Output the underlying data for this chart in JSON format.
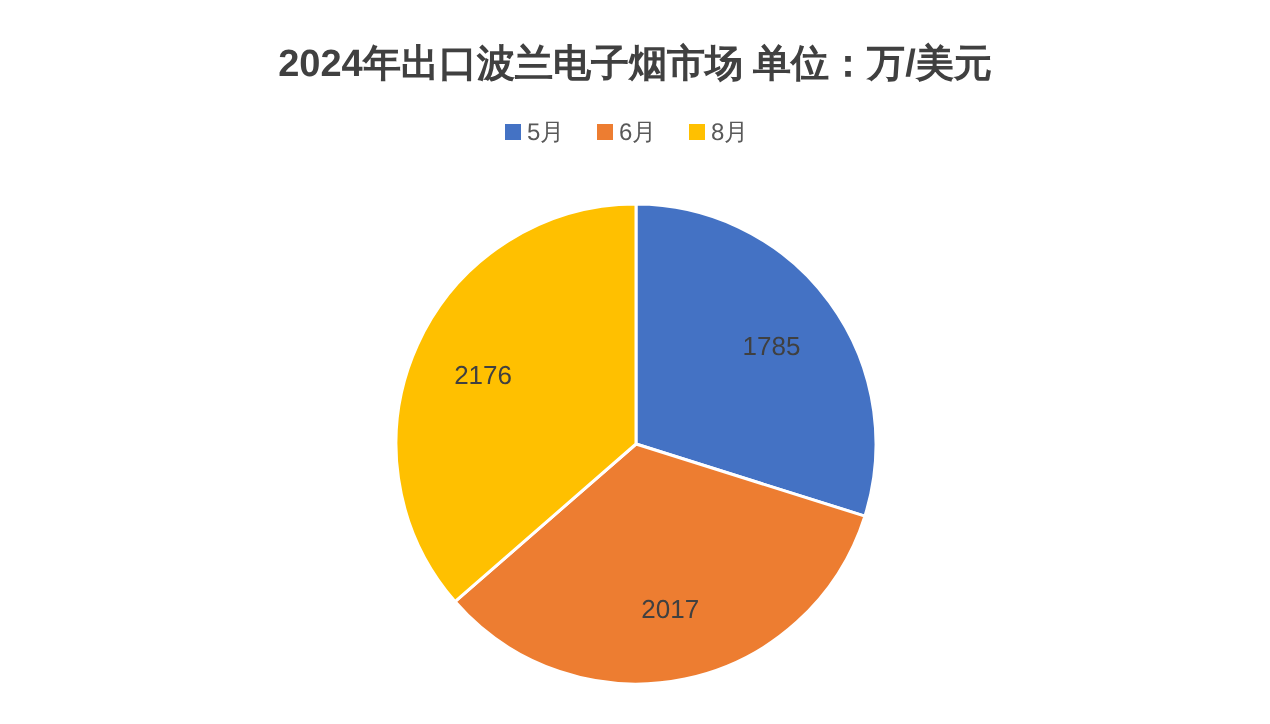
{
  "chart_data": {
    "type": "pie",
    "title": "2024年出口波兰电子烟市场 单位：万/美元",
    "categories": [
      "5月",
      "6月",
      "8月"
    ],
    "values": [
      1785,
      2017,
      2176
    ],
    "colors": [
      "#4472c4",
      "#ed7d31",
      "#ffc000"
    ],
    "data_labels": true,
    "legend": "top"
  }
}
